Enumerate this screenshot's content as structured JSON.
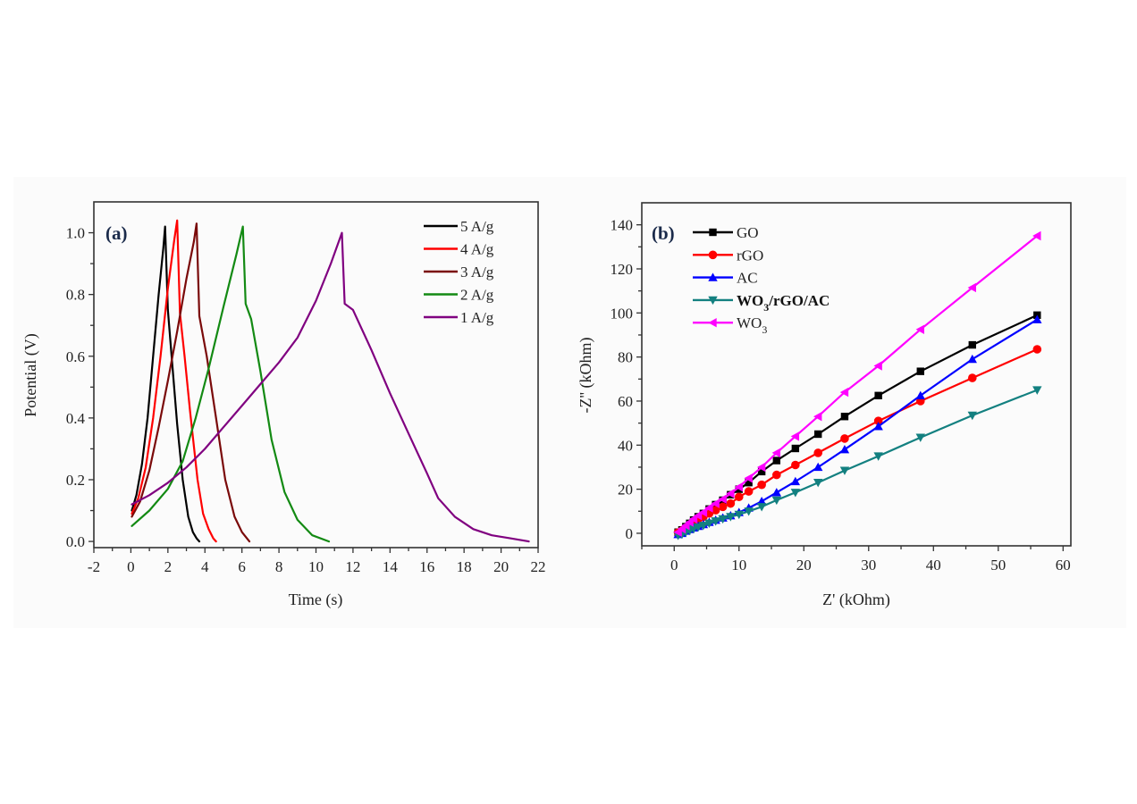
{
  "figure": {
    "background": "#fbfbfb"
  },
  "chart_data": [
    {
      "id": "a",
      "type": "line",
      "panel_label": "(a)",
      "title": "",
      "xlabel": "Time (s)",
      "ylabel": "Potential (V)",
      "xlim": [
        -2,
        22
      ],
      "ylim": [
        -0.02,
        1.1
      ],
      "xticks": [
        -2,
        0,
        2,
        4,
        6,
        8,
        10,
        12,
        14,
        16,
        18,
        20,
        22
      ],
      "xtick_labels": [
        "-2",
        "0",
        "2",
        "4",
        "6",
        "8",
        "10",
        "12",
        "14",
        "16",
        "18",
        "20",
        "22"
      ],
      "yticks": [
        0.0,
        0.2,
        0.4,
        0.6,
        0.8,
        1.0
      ],
      "ytick_labels": [
        "0.0",
        "0.2",
        "0.4",
        "0.6",
        "0.8",
        "1.0"
      ],
      "grid": false,
      "legend_position": "top-right",
      "series": [
        {
          "name": "5 A/g",
          "color": "#000000",
          "x": [
            0.05,
            0.3,
            0.6,
            0.9,
            1.2,
            1.5,
            1.75,
            1.85,
            2.0,
            2.2,
            2.5,
            2.8,
            3.1,
            3.35,
            3.55,
            3.7
          ],
          "y": [
            0.1,
            0.15,
            0.25,
            0.4,
            0.6,
            0.8,
            0.95,
            1.02,
            0.75,
            0.6,
            0.38,
            0.2,
            0.08,
            0.03,
            0.01,
            0.0
          ]
        },
        {
          "name": "4 A/g",
          "color": "#ff0000",
          "x": [
            0.05,
            0.4,
            0.8,
            1.2,
            1.6,
            2.0,
            2.35,
            2.5,
            2.65,
            2.9,
            3.2,
            3.6,
            3.9,
            4.2,
            4.45,
            4.6
          ],
          "y": [
            0.09,
            0.14,
            0.24,
            0.4,
            0.6,
            0.82,
            0.98,
            1.04,
            0.74,
            0.6,
            0.42,
            0.2,
            0.09,
            0.04,
            0.01,
            0.0
          ]
        },
        {
          "name": "3 A/g",
          "color": "#7a0a0a",
          "x": [
            0.05,
            0.5,
            1.0,
            1.5,
            2.0,
            2.5,
            3.0,
            3.4,
            3.55,
            3.7,
            4.1,
            4.6,
            5.1,
            5.6,
            6.0,
            6.4
          ],
          "y": [
            0.08,
            0.13,
            0.23,
            0.37,
            0.52,
            0.68,
            0.85,
            0.97,
            1.03,
            0.73,
            0.6,
            0.4,
            0.2,
            0.08,
            0.03,
            0.0
          ]
        },
        {
          "name": "2 A/g",
          "color": "#138a13",
          "x": [
            0.05,
            1.0,
            2.0,
            2.8,
            3.5,
            4.2,
            5.0,
            5.7,
            6.05,
            6.2,
            6.5,
            7.0,
            7.6,
            8.3,
            9.0,
            9.8,
            10.7
          ],
          "y": [
            0.05,
            0.1,
            0.17,
            0.26,
            0.4,
            0.56,
            0.76,
            0.93,
            1.02,
            0.77,
            0.72,
            0.55,
            0.33,
            0.16,
            0.07,
            0.02,
            0.0
          ]
        },
        {
          "name": "1 A/g",
          "color": "#800080",
          "x": [
            0.05,
            1.0,
            2.0,
            3.0,
            4.0,
            5.0,
            6.0,
            7.0,
            8.0,
            9.0,
            10.0,
            10.8,
            11.4,
            11.55,
            12.0,
            13.0,
            14.0,
            15.0,
            16.0,
            16.6,
            17.5,
            18.5,
            19.5,
            20.5,
            21.5
          ],
          "y": [
            0.12,
            0.15,
            0.19,
            0.24,
            0.3,
            0.37,
            0.44,
            0.51,
            0.58,
            0.66,
            0.78,
            0.9,
            1.0,
            0.77,
            0.75,
            0.62,
            0.48,
            0.35,
            0.22,
            0.14,
            0.08,
            0.04,
            0.02,
            0.01,
            0.0
          ]
        }
      ]
    },
    {
      "id": "b",
      "type": "line",
      "panel_label": "(b)",
      "title": "",
      "xlabel": "Z' (kOhm)",
      "ylabel": "-Z'' (kOhm)",
      "xlim": [
        -5,
        61.2
      ],
      "ylim": [
        -5.7,
        150
      ],
      "xticks": [
        0,
        10,
        20,
        30,
        40,
        50,
        60
      ],
      "xtick_labels": [
        "0",
        "10",
        "20",
        "30",
        "40",
        "50",
        "60"
      ],
      "yticks": [
        0,
        20,
        40,
        60,
        80,
        100,
        120,
        140
      ],
      "ytick_labels": [
        "0",
        "20",
        "40",
        "60",
        "80",
        "100",
        "120",
        "140"
      ],
      "grid": false,
      "legend_position": "top-left",
      "series": [
        {
          "name": "GO",
          "label_main": "GO",
          "label_sub": "",
          "label_tail": "",
          "bold": false,
          "color": "#000000",
          "marker": "square",
          "x": [
            0.6,
            1.2,
            1.8,
            2.4,
            3.0,
            3.7,
            4.5,
            5.4,
            6.4,
            7.5,
            8.7,
            10.0,
            11.5,
            13.5,
            15.8,
            18.7,
            22.2,
            26.3,
            31.5,
            38.0,
            46.0,
            56.0
          ],
          "y": [
            0.5,
            1.5,
            3.0,
            4.5,
            6.0,
            7.5,
            9.0,
            11.0,
            13.0,
            15.0,
            17.5,
            20.0,
            23.0,
            28.0,
            33.0,
            38.5,
            45.0,
            53.0,
            62.5,
            73.5,
            85.5,
            99.0
          ]
        },
        {
          "name": "rGO",
          "label_main": "rGO",
          "label_sub": "",
          "label_tail": "",
          "bold": false,
          "color": "#ff0000",
          "marker": "circle",
          "x": [
            0.6,
            1.2,
            1.8,
            2.4,
            3.0,
            3.7,
            4.5,
            5.4,
            6.4,
            7.5,
            8.7,
            10.0,
            11.5,
            13.5,
            15.8,
            18.7,
            22.2,
            26.3,
            31.5,
            38.0,
            46.0,
            56.0
          ],
          "y": [
            0.3,
            1.2,
            2.5,
            3.8,
            5.0,
            6.3,
            7.5,
            9.0,
            10.5,
            12.0,
            13.5,
            16.5,
            19.0,
            22.0,
            26.5,
            31.0,
            36.5,
            43.0,
            51.0,
            60.0,
            70.5,
            83.5
          ]
        },
        {
          "name": "AC",
          "label_main": "AC",
          "label_sub": "",
          "label_tail": "",
          "bold": false,
          "color": "#0000ff",
          "marker": "triangle-up",
          "x": [
            0.6,
            1.2,
            1.8,
            2.4,
            3.0,
            3.7,
            4.5,
            5.4,
            6.4,
            7.5,
            8.7,
            10.0,
            11.5,
            13.5,
            15.8,
            18.7,
            22.2,
            26.3,
            31.5,
            38.0,
            46.0,
            56.0
          ],
          "y": [
            -0.5,
            0.0,
            1.0,
            1.8,
            2.5,
            3.2,
            4.0,
            5.0,
            6.0,
            7.0,
            8.0,
            9.5,
            11.5,
            14.5,
            18.5,
            23.5,
            30.0,
            38.0,
            48.5,
            62.5,
            79.0,
            97.0
          ]
        },
        {
          "name": "WO3/rGO/AC",
          "label_main": "WO",
          "label_sub": "3",
          "label_tail": "/rGO/AC",
          "bold": true,
          "color": "#138080",
          "marker": "triangle-down",
          "x": [
            0.6,
            1.2,
            1.8,
            2.4,
            3.0,
            3.7,
            4.5,
            5.4,
            6.4,
            7.5,
            8.7,
            10.0,
            11.5,
            13.5,
            15.8,
            18.7,
            22.2,
            26.3,
            31.5,
            38.0,
            46.0,
            56.0
          ],
          "y": [
            -1.0,
            -0.5,
            0.5,
            1.2,
            2.0,
            2.8,
            3.5,
            4.5,
            5.5,
            6.5,
            7.5,
            8.5,
            10.0,
            12.0,
            15.0,
            18.5,
            23.0,
            28.5,
            35.0,
            43.5,
            53.5,
            65.0
          ]
        },
        {
          "name": "WO3",
          "label_main": "WO",
          "label_sub": "3",
          "label_tail": "",
          "bold": false,
          "color": "#ff00ff",
          "marker": "triangle-left",
          "x": [
            0.6,
            1.2,
            1.8,
            2.4,
            3.0,
            3.7,
            4.5,
            5.4,
            6.4,
            7.5,
            8.7,
            10.0,
            11.5,
            13.5,
            15.8,
            18.7,
            22.2,
            26.3,
            31.5,
            38.0,
            46.0,
            56.0
          ],
          "y": [
            0.5,
            2.0,
            3.5,
            5.0,
            6.5,
            8.0,
            9.5,
            11.5,
            13.5,
            15.5,
            18.0,
            21.0,
            25.0,
            30.0,
            36.5,
            44.0,
            53.0,
            64.0,
            76.0,
            92.5,
            111.5,
            135.0
          ]
        }
      ]
    }
  ]
}
